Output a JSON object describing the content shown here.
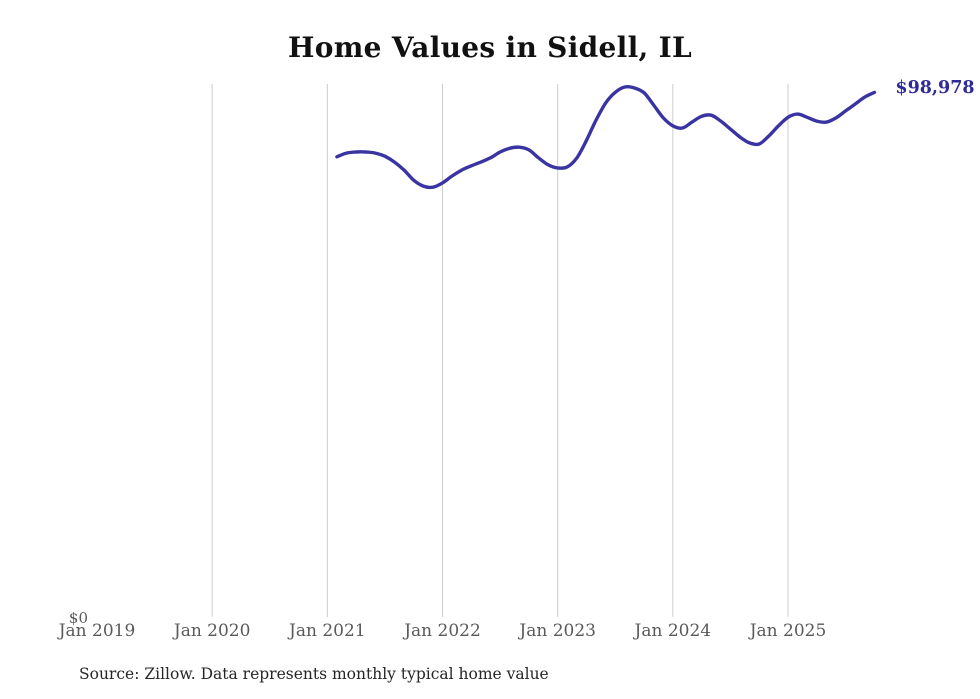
{
  "title": "Home Values in Sidell, IL",
  "source_note": "Source: Zillow. Data represents monthly typical home value",
  "last_value_label": "$98,978",
  "colors": {
    "background": "#ffffff",
    "line": "#3a34a3",
    "last_value_label": "#2f2b96",
    "gridline": "#cccccc",
    "tick_label": "#5a5a5a",
    "title": "#111111",
    "source": "#262626"
  },
  "chart_data": {
    "type": "line",
    "title": "Home Values in Sidell, IL",
    "series_name": "Monthly typical home value",
    "x_tick_labels": [
      "Jan 2019",
      "Jan 2020",
      "Jan 2021",
      "Jan 2022",
      "Jan 2023",
      "Jan 2024",
      "Jan 2025"
    ],
    "y_tick_labels": [
      "$0"
    ],
    "ylim": [
      0,
      100600
    ],
    "grid": "vertical-only",
    "legend": "none",
    "last_point_label": "$98,978",
    "months": [
      "2021-02",
      "2021-03",
      "2021-04",
      "2021-05",
      "2021-06",
      "2021-07",
      "2021-08",
      "2021-09",
      "2021-10",
      "2021-11",
      "2021-12",
      "2022-01",
      "2022-02",
      "2022-03",
      "2022-04",
      "2022-05",
      "2022-06",
      "2022-07",
      "2022-08",
      "2022-09",
      "2022-10",
      "2022-11",
      "2022-12",
      "2023-01",
      "2023-02",
      "2023-03",
      "2023-04",
      "2023-05",
      "2023-06",
      "2023-07",
      "2023-08",
      "2023-09",
      "2023-10",
      "2023-11",
      "2023-12",
      "2024-01",
      "2024-02",
      "2024-03",
      "2024-04",
      "2024-05",
      "2024-06",
      "2024-07",
      "2024-08",
      "2024-09",
      "2024-10",
      "2024-11",
      "2024-12",
      "2025-01",
      "2025-02",
      "2025-03",
      "2025-04",
      "2025-05",
      "2025-06",
      "2025-07",
      "2025-08",
      "2025-09",
      "2025-10"
    ],
    "values": [
      86900,
      87600,
      87800,
      87800,
      87600,
      87000,
      85900,
      84400,
      82500,
      81400,
      81200,
      82000,
      83300,
      84400,
      85200,
      85900,
      86700,
      87800,
      88500,
      88700,
      88200,
      86700,
      85400,
      84800,
      85000,
      86700,
      90000,
      93800,
      97000,
      99000,
      100000,
      99800,
      98900,
      96600,
      94200,
      92700,
      92300,
      93400,
      94500,
      94700,
      93600,
      92100,
      90600,
      89500,
      89300,
      90800,
      92700,
      94300,
      94900,
      94300,
      93600,
      93400,
      94200,
      95500,
      96800,
      98100,
      98978
    ]
  }
}
